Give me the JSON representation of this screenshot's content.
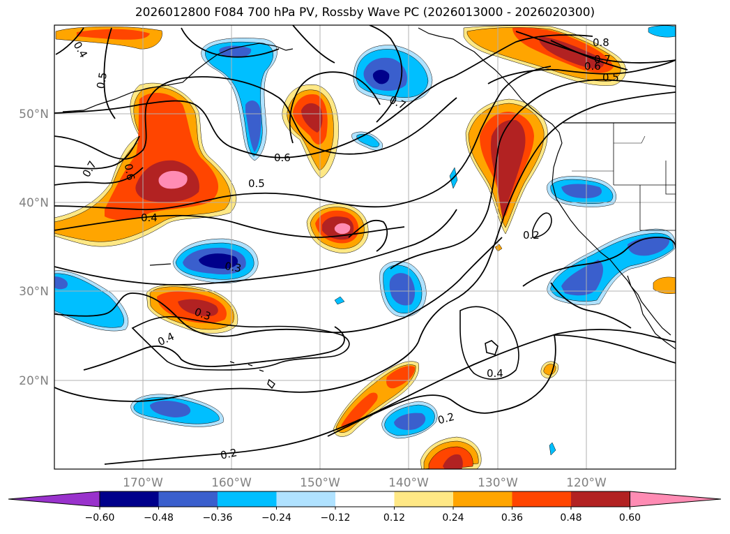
{
  "title": "2026012800 F084 700 hPa PV, Rossby Wave PC (2026013000 - 2026020300)",
  "lat_labels": [
    "50°N",
    "40°N",
    "30°N",
    "20°N"
  ],
  "lon_labels": [
    "170°W",
    "160°W",
    "150°W",
    "140°W",
    "130°W",
    "120°W"
  ],
  "contour_labels": [
    "0.4",
    "0.5",
    "0.7",
    "0.6",
    "0.6",
    "0.5",
    "0.4",
    "0.7",
    "0.8",
    "0.7",
    "0.6",
    "0.5",
    "0.2",
    "0.3",
    "0.3",
    "0.4",
    "0.4",
    "0.2",
    "0.2"
  ],
  "colorbar": {
    "ticks": [
      "−0.60",
      "−0.48",
      "−0.36",
      "−0.24",
      "−0.12",
      "0.12",
      "0.24",
      "0.36",
      "0.48",
      "0.60"
    ],
    "colors": [
      "#9932cc",
      "#00008b",
      "#3a5fcd",
      "#00bfff",
      "#b0e2ff",
      "#ffffff",
      "#ffe885",
      "#ffa500",
      "#ff4500",
      "#b22222",
      "#ff8cb4"
    ]
  }
}
